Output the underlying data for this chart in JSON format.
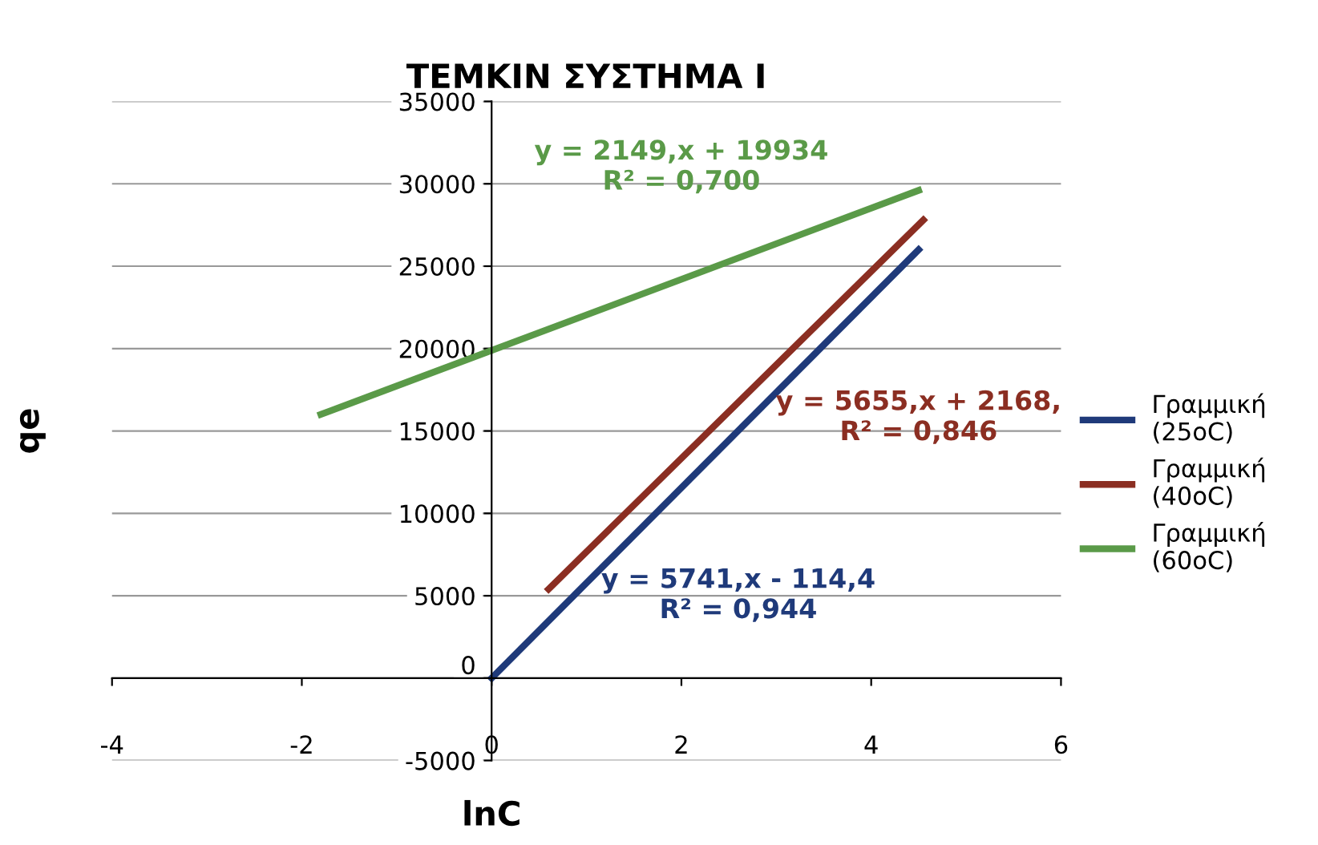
{
  "chart_data": {
    "type": "line",
    "title": "ΤΕΜΚΙΝ ΣΥΣΤΗΜΑ Ι",
    "xlabel": "lnC",
    "ylabel": "qe",
    "series": [
      {
        "name": "Γραμμική (25oC)",
        "color": "#1f3a7a",
        "x": [
          0,
          4.5
        ],
        "values": [
          0,
          26000
        ]
      },
      {
        "name": "Γραμμική (40oC)",
        "color": "#8b2e22",
        "x": [
          0.6,
          4.55
        ],
        "values": [
          5400,
          27800
        ]
      },
      {
        "name": "Γραμμική (60oC)",
        "color": "#5a9a48",
        "x": [
          -1.8,
          4.5
        ],
        "values": [
          16000,
          29600
        ]
      }
    ],
    "annotations": [
      "y = 5741,x - 114,4\nR² = 0,944",
      "y = 5655,x + 2168,\nR² = 0,846",
      "y = 2149,x + 19934\nR² = 0,700"
    ],
    "xlim": [
      -4,
      6
    ],
    "xticks": [
      -4,
      -2,
      0,
      2,
      4,
      6
    ],
    "ylim": [
      -5000,
      35000
    ],
    "yticks": [
      -5000,
      0,
      5000,
      10000,
      15000,
      20000,
      25000,
      30000,
      35000
    ],
    "grid": "y",
    "legend": "right",
    "marker": "none",
    "line_style": "solid"
  }
}
